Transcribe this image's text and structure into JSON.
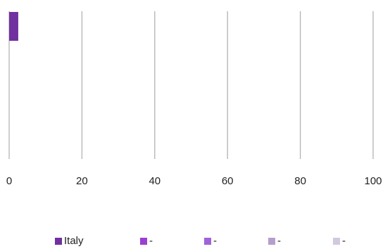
{
  "chart_data": {
    "type": "bar",
    "orientation": "horizontal",
    "title": "",
    "xlabel": "",
    "ylabel": "",
    "xlim": [
      0,
      100
    ],
    "xticks": [
      0,
      20,
      40,
      60,
      80,
      100
    ],
    "grid": true,
    "legend_position": "bottom",
    "series": [
      {
        "name": "Italy",
        "color": "#7030A0",
        "values": [
          2.5
        ]
      },
      {
        "name": "-",
        "color": "#9B3FD1",
        "values": []
      },
      {
        "name": "-",
        "color": "#A062D9",
        "values": []
      },
      {
        "name": "-",
        "color": "#B49FCB",
        "values": []
      },
      {
        "name": "-",
        "color": "#D2C8E0",
        "values": []
      }
    ]
  }
}
